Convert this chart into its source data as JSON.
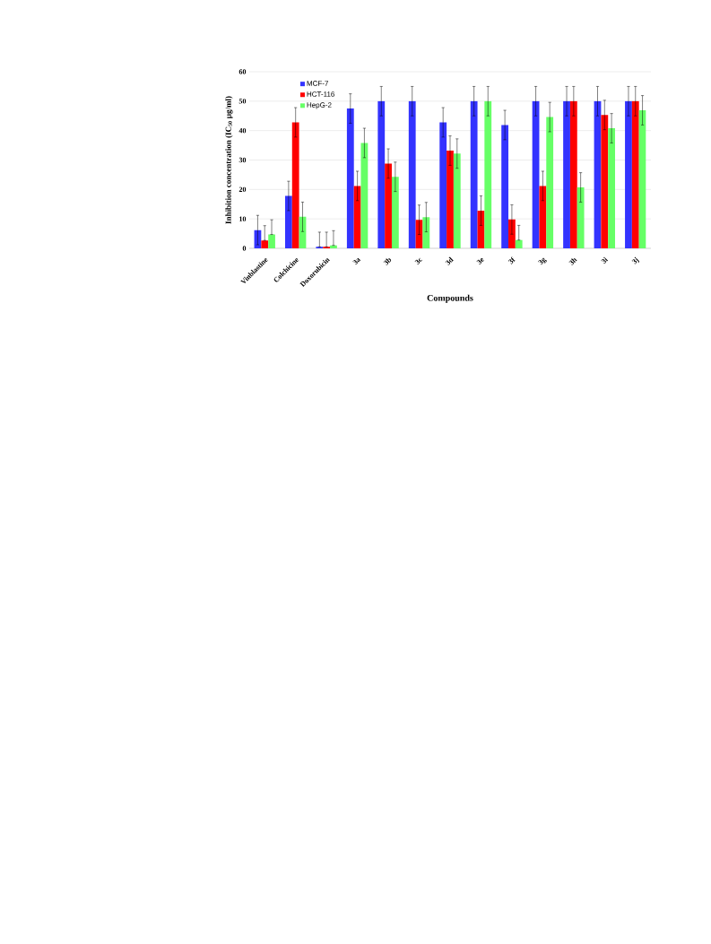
{
  "chart_data": {
    "type": "bar",
    "xlabel": "Compounds",
    "ylabel": "Inhibition concentration (IC$_{50}$ µg/ml)",
    "categories": [
      "Vinblastine",
      "Colchicine",
      "Doxorubicin",
      "3a",
      "3b",
      "3c",
      "3d",
      "3e",
      "3f",
      "3g",
      "3h",
      "3i",
      "3j"
    ],
    "series": [
      {
        "name": "MCF-7",
        "color": "#3333ff",
        "values": [
          6.2,
          17.8,
          0.5,
          47.5,
          50,
          50,
          42.8,
          50,
          41.9,
          50,
          50,
          50,
          50
        ],
        "errors": [
          5,
          5,
          [
            0.5,
            5.5
          ],
          5,
          5,
          5,
          5,
          5,
          5,
          5,
          5,
          5,
          5
        ]
      },
      {
        "name": "HCT-116",
        "color": "#ff0000",
        "values": [
          2.7,
          42.8,
          0.5,
          21.2,
          28.8,
          9.7,
          33.2,
          12.8,
          9.8,
          21.2,
          50,
          45.3,
          50
        ],
        "errors": [
          [
            2.7,
            7.7
          ],
          5,
          [
            0.5,
            5.5
          ],
          5,
          5,
          5,
          5,
          5,
          5,
          5,
          5,
          5,
          5
        ]
      },
      {
        "name": "HepG-2",
        "color": "#66ff66",
        "values": [
          4.7,
          10.7,
          1.0,
          35.8,
          24.3,
          10.6,
          32.2,
          50,
          2.8,
          44.6,
          20.7,
          40.8,
          46.9
        ],
        "errors": [
          [
            4.7,
            9.7
          ],
          5,
          [
            1.0,
            6.0
          ],
          5,
          5,
          5,
          5,
          5,
          [
            2.8,
            7.8
          ],
          5,
          5,
          5,
          5
        ]
      }
    ],
    "ylim": [
      0,
      60
    ],
    "yticks": [
      0,
      10,
      20,
      30,
      40,
      50,
      60
    ],
    "grid": "y",
    "legend": "top left"
  }
}
